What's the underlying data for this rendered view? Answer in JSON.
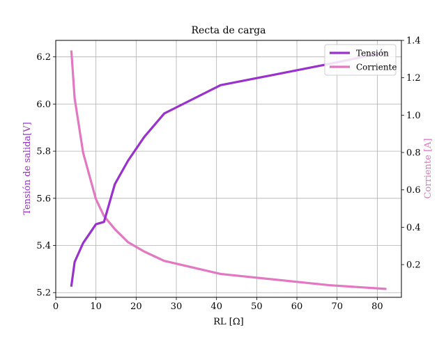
{
  "chart_data": {
    "type": "line",
    "title": "Recta de carga",
    "xlabel": "RL [Ω]",
    "ylabel_left": "Tensión de salida[V]",
    "ylabel_right": "Corriente [A]",
    "xlim": [
      0,
      86
    ],
    "ylim_left": [
      5.18,
      6.27
    ],
    "ylim_right": [
      0.025,
      1.4
    ],
    "x_ticks": [
      0,
      10,
      20,
      30,
      40,
      50,
      60,
      70,
      80
    ],
    "y_left_ticks": [
      5.2,
      5.4,
      5.6,
      5.8,
      6.0,
      6.2
    ],
    "y_right_ticks": [
      0.2,
      0.4,
      0.6,
      0.8,
      1.0,
      1.2,
      1.4
    ],
    "grid": true,
    "legend_position": "top-right",
    "colors": {
      "tension": "#9932cc",
      "corriente": "#e377c2"
    },
    "series": [
      {
        "name": "Tensión",
        "axis": "left",
        "x": [
          3.9,
          4.7,
          6.8,
          10,
          12,
          14.7,
          18,
          22,
          27,
          41,
          68,
          82
        ],
        "y": [
          5.23,
          5.33,
          5.41,
          5.49,
          5.5,
          5.66,
          5.76,
          5.86,
          5.96,
          6.08,
          6.17,
          6.22
        ]
      },
      {
        "name": "Corriente",
        "axis": "right",
        "x": [
          3.9,
          4.7,
          6.8,
          10,
          12,
          14.7,
          18,
          22,
          27,
          41,
          68,
          82
        ],
        "y": [
          1.34,
          1.09,
          0.8,
          0.55,
          0.46,
          0.39,
          0.32,
          0.27,
          0.22,
          0.15,
          0.09,
          0.07
        ]
      }
    ]
  }
}
